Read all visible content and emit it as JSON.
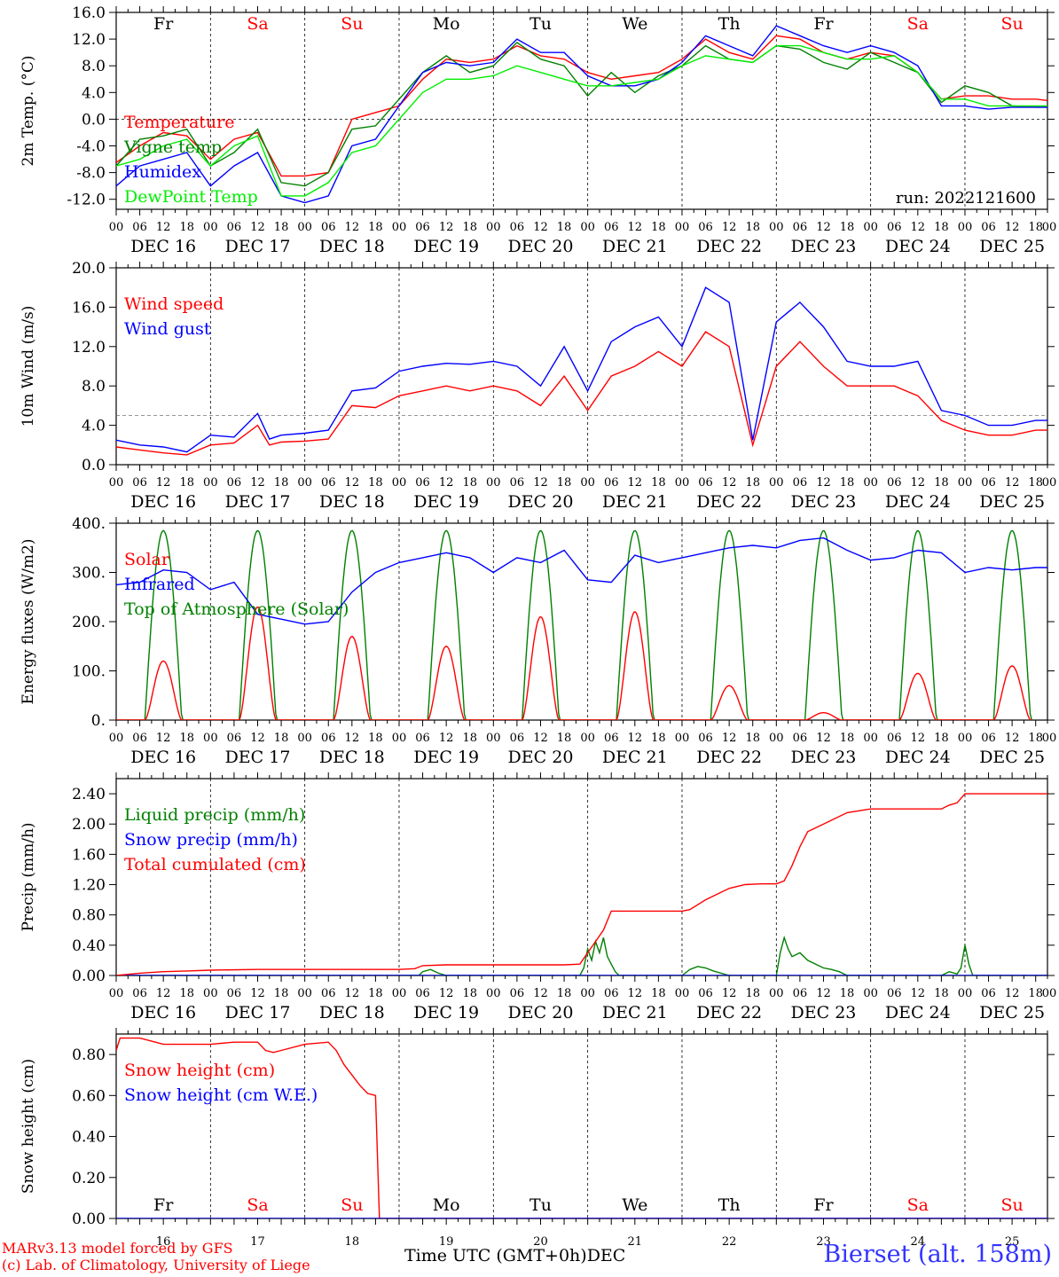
{
  "chart_data": [
    {
      "type": "line",
      "ylabel": "2m Temp. (°C)",
      "ylim": [
        -13.5,
        16.0
      ],
      "yticks": [
        "16.0",
        "12.0",
        "8.0",
        "4.0",
        "0.0",
        "-4.0",
        "-8.0",
        "-12.0"
      ],
      "yticks_values": [
        16,
        12,
        8,
        4,
        0,
        -4,
        -8,
        -12
      ],
      "zero_line": true,
      "annotation": "run: 2022121600",
      "legend_position": "bottom-left",
      "day_names_top": true,
      "series": [
        {
          "name": "Temperature",
          "color": "#ff0000",
          "x": [
            0,
            6,
            12,
            18,
            24,
            30,
            36,
            42,
            48,
            54,
            60,
            66,
            72,
            78,
            84,
            90,
            96,
            102,
            108,
            114,
            120,
            126,
            132,
            138,
            144,
            150,
            156,
            162,
            168,
            174,
            180,
            186,
            192,
            198,
            204,
            210,
            216,
            222,
            228,
            234,
            237
          ],
          "values": [
            -6.5,
            -4,
            -2,
            -2.5,
            -6,
            -3,
            -2,
            -8.5,
            -8.5,
            -8,
            0,
            1,
            2,
            6,
            9,
            8.5,
            9,
            11,
            9.5,
            9,
            7,
            6,
            6.5,
            7,
            9,
            12,
            10,
            9,
            12.5,
            12,
            10,
            9,
            10,
            9.5,
            7,
            3,
            3.5,
            3.5,
            3,
            3,
            2.8
          ]
        },
        {
          "name": "Vigne temp",
          "color": "#008000",
          "x": [
            0,
            6,
            12,
            18,
            24,
            30,
            36,
            42,
            48,
            54,
            60,
            66,
            72,
            78,
            84,
            90,
            96,
            102,
            108,
            114,
            120,
            126,
            132,
            138,
            144,
            150,
            156,
            162,
            168,
            174,
            180,
            186,
            192,
            198,
            204,
            210,
            216,
            222,
            228,
            234,
            237
          ],
          "values": [
            -7,
            -3,
            -2.5,
            -1.5,
            -7,
            -5,
            -1.5,
            -9.5,
            -10,
            -8,
            -1.5,
            -1,
            3,
            7,
            9.5,
            7,
            8,
            11.5,
            9,
            8,
            3.5,
            7,
            4,
            6.5,
            8,
            11,
            9,
            8.5,
            11,
            10.5,
            8.5,
            7.5,
            10,
            8.5,
            7,
            2.5,
            5,
            4,
            2,
            1.8,
            1.8
          ]
        },
        {
          "name": "Humidex",
          "color": "#0000ff",
          "x": [
            0,
            6,
            12,
            18,
            24,
            30,
            36,
            42,
            48,
            54,
            60,
            66,
            72,
            78,
            84,
            90,
            96,
            102,
            108,
            114,
            120,
            126,
            132,
            138,
            144,
            150,
            156,
            162,
            168,
            174,
            180,
            186,
            192,
            198,
            204,
            210,
            216,
            222,
            228,
            234,
            237
          ],
          "values": [
            -10,
            -7,
            -6,
            -5,
            -10,
            -7,
            -5,
            -11.5,
            -12.5,
            -11.5,
            -4,
            -3,
            2,
            7,
            8.5,
            8,
            8.5,
            12,
            10,
            10,
            6.5,
            5,
            5,
            6,
            8.5,
            12.5,
            11,
            9.5,
            14,
            12.5,
            11,
            10,
            11,
            10,
            8,
            2,
            2,
            1.5,
            1.8,
            1.8,
            1.8
          ]
        },
        {
          "name": "DewPoint Temp",
          "color": "#00ee00",
          "x": [
            0,
            6,
            12,
            18,
            24,
            30,
            36,
            42,
            48,
            54,
            60,
            66,
            72,
            78,
            84,
            90,
            96,
            102,
            108,
            114,
            120,
            126,
            132,
            138,
            144,
            150,
            156,
            162,
            168,
            174,
            180,
            186,
            192,
            198,
            204,
            210,
            216,
            222,
            228,
            234,
            237
          ],
          "values": [
            -7,
            -6,
            -4,
            -3,
            -7,
            -4,
            -2.5,
            -11.5,
            -11.5,
            -9.5,
            -5,
            -4,
            0,
            4,
            6,
            6,
            6.5,
            8,
            7,
            6,
            5,
            5,
            5.5,
            6,
            8,
            9.5,
            9,
            8.5,
            11,
            11,
            10,
            9,
            9,
            9.5,
            7,
            3,
            3,
            2,
            2,
            2,
            2
          ]
        }
      ]
    },
    {
      "type": "line",
      "ylabel": "10m Wind (m/s)",
      "ylim": [
        0,
        20
      ],
      "yticks": [
        "20.0",
        "16.0",
        "12.0",
        "8.0",
        "4.0",
        "0.0"
      ],
      "yticks_values": [
        20,
        16,
        12,
        8,
        4,
        0
      ],
      "reference_line": 5,
      "legend_position": "top-left",
      "series": [
        {
          "name": "Wind speed",
          "color": "#ff0000",
          "x": [
            0,
            6,
            12,
            18,
            24,
            30,
            36,
            39,
            42,
            48,
            54,
            60,
            66,
            72,
            78,
            84,
            90,
            96,
            102,
            108,
            114,
            120,
            126,
            132,
            138,
            144,
            150,
            156,
            162,
            168,
            174,
            180,
            186,
            192,
            198,
            204,
            210,
            216,
            222,
            228,
            234,
            237
          ],
          "values": [
            1.8,
            1.5,
            1.2,
            1.0,
            2.0,
            2.2,
            4.0,
            2.0,
            2.3,
            2.4,
            2.6,
            6.0,
            5.8,
            7.0,
            7.5,
            8.0,
            7.5,
            8.0,
            7.5,
            6.0,
            9.0,
            5.5,
            9.0,
            10.0,
            11.5,
            10.0,
            13.5,
            12.0,
            2.0,
            10.0,
            12.5,
            10.0,
            8.0,
            8.0,
            8.0,
            7.0,
            4.5,
            3.5,
            3.0,
            3.0,
            3.5,
            3.5
          ]
        },
        {
          "name": "Wind gust",
          "color": "#0000ff",
          "x": [
            0,
            6,
            12,
            18,
            24,
            30,
            36,
            39,
            42,
            48,
            54,
            60,
            66,
            72,
            78,
            84,
            90,
            96,
            102,
            108,
            114,
            120,
            126,
            132,
            138,
            144,
            150,
            156,
            162,
            168,
            174,
            180,
            186,
            192,
            198,
            204,
            210,
            216,
            222,
            228,
            234,
            237
          ],
          "values": [
            2.5,
            2.0,
            1.8,
            1.3,
            3.0,
            2.8,
            5.2,
            2.6,
            3.0,
            3.2,
            3.5,
            7.5,
            7.8,
            9.5,
            10.0,
            10.3,
            10.2,
            10.5,
            10.0,
            8.0,
            12.0,
            7.5,
            12.5,
            14.0,
            15.0,
            12.0,
            18.0,
            16.5,
            2.5,
            14.5,
            16.5,
            14.0,
            10.5,
            10.0,
            10.0,
            10.5,
            5.5,
            5.0,
            4.0,
            4.0,
            4.5,
            4.5
          ]
        }
      ]
    },
    {
      "type": "line",
      "ylabel": "Energy fluxes (W/m2)",
      "ylim": [
        0,
        400
      ],
      "yticks": [
        "400.",
        "300.",
        "200.",
        "100.",
        "0."
      ],
      "yticks_values": [
        400,
        300,
        200,
        100,
        0
      ],
      "legend_position": "top-left",
      "series": [
        {
          "name": "Solar",
          "color": "#ff0000",
          "peaks": [
            120,
            230,
            170,
            150,
            210,
            220,
            70,
            15,
            95,
            110
          ]
        },
        {
          "name": "Infrared",
          "color": "#0000ff",
          "x": [
            0,
            6,
            12,
            18,
            24,
            30,
            36,
            42,
            48,
            54,
            60,
            66,
            72,
            78,
            84,
            90,
            96,
            102,
            108,
            114,
            120,
            126,
            132,
            138,
            144,
            150,
            156,
            162,
            168,
            174,
            180,
            186,
            192,
            198,
            204,
            210,
            216,
            222,
            228,
            234,
            237
          ],
          "values": [
            275,
            280,
            305,
            300,
            265,
            280,
            215,
            205,
            195,
            200,
            260,
            300,
            320,
            330,
            340,
            330,
            300,
            330,
            320,
            345,
            285,
            280,
            335,
            320,
            330,
            340,
            350,
            355,
            350,
            365,
            370,
            345,
            325,
            330,
            345,
            340,
            300,
            310,
            305,
            310,
            310
          ]
        },
        {
          "name": "Top of Atmosphere (Solar)",
          "color": "#008000",
          "peak": 385
        }
      ]
    },
    {
      "type": "line",
      "ylabel": "Precip (mm/h)",
      "ylim": [
        0,
        2.6
      ],
      "yticks": [
        "2.40",
        "2.00",
        "1.60",
        "1.20",
        "0.80",
        "0.40",
        "0.00"
      ],
      "yticks_values": [
        2.4,
        2.0,
        1.6,
        1.2,
        0.8,
        0.4,
        0.0
      ],
      "legend_position": "top-left",
      "series": [
        {
          "name": "Liquid precip (mm/h)",
          "color": "#008000",
          "x": [
            0,
            77,
            78,
            80,
            82,
            84,
            118,
            119,
            120,
            121,
            122,
            123,
            124,
            125,
            126,
            127,
            128,
            144,
            146,
            148,
            150,
            152,
            156,
            168,
            169,
            170,
            171,
            172,
            174,
            176,
            178,
            180,
            182,
            184,
            186,
            210,
            212,
            214,
            215,
            216,
            217,
            218,
            237
          ],
          "values": [
            0,
            0,
            0.05,
            0.08,
            0.03,
            0,
            0,
            0.1,
            0.35,
            0.2,
            0.45,
            0.3,
            0.5,
            0.25,
            0.15,
            0.05,
            0,
            0,
            0.08,
            0.12,
            0.1,
            0.06,
            0,
            0,
            0.3,
            0.5,
            0.35,
            0.25,
            0.3,
            0.2,
            0.15,
            0.1,
            0.08,
            0.05,
            0,
            0,
            0.05,
            0.02,
            0.1,
            0.4,
            0.15,
            0,
            0
          ]
        },
        {
          "name": "Snow precip (mm/h)",
          "color": "#0000ff",
          "x": [
            0,
            237
          ],
          "values": [
            0,
            0
          ]
        },
        {
          "name": "Total cumulated (cm)",
          "color": "#ff0000",
          "x": [
            0,
            6,
            12,
            18,
            24,
            36,
            48,
            60,
            72,
            76,
            78,
            84,
            96,
            108,
            114,
            118,
            120,
            122,
            124,
            126,
            132,
            140,
            144,
            146,
            150,
            156,
            160,
            164,
            168,
            170,
            172,
            174,
            176,
            180,
            186,
            192,
            204,
            210,
            212,
            214,
            216,
            237
          ],
          "values": [
            0,
            0.03,
            0.05,
            0.06,
            0.07,
            0.08,
            0.08,
            0.08,
            0.08,
            0.09,
            0.13,
            0.14,
            0.14,
            0.14,
            0.14,
            0.15,
            0.3,
            0.45,
            0.6,
            0.85,
            0.85,
            0.85,
            0.85,
            0.87,
            1.0,
            1.15,
            1.2,
            1.21,
            1.21,
            1.25,
            1.45,
            1.7,
            1.9,
            2.0,
            2.15,
            2.2,
            2.2,
            2.2,
            2.25,
            2.28,
            2.4,
            2.4
          ]
        }
      ]
    },
    {
      "type": "line",
      "ylabel": "Snow height (cm)",
      "ylim": [
        0,
        0.9
      ],
      "yticks": [
        "0.80",
        "0.60",
        "0.40",
        "0.20",
        "0.00"
      ],
      "yticks_values": [
        0.8,
        0.6,
        0.4,
        0.2,
        0.0
      ],
      "legend_position": "top-left",
      "day_names_bottom": true,
      "series": [
        {
          "name": "Snow height (cm)",
          "color": "#ff0000",
          "x": [
            0,
            1,
            2,
            6,
            10,
            12,
            16,
            24,
            30,
            36,
            38,
            40,
            42,
            48,
            54,
            56,
            58,
            62,
            64,
            66,
            67,
            68,
            237
          ],
          "values": [
            0.82,
            0.88,
            0.88,
            0.88,
            0.86,
            0.85,
            0.85,
            0.85,
            0.86,
            0.86,
            0.82,
            0.81,
            0.82,
            0.85,
            0.86,
            0.82,
            0.75,
            0.65,
            0.61,
            0.6,
            0.0,
            0.0,
            0.0
          ]
        },
        {
          "name": "Snow height (cm W.E.)",
          "color": "#0000ff",
          "x": [
            0,
            237
          ],
          "values": [
            0,
            0
          ]
        }
      ]
    }
  ],
  "x_axis": {
    "hour_ticks": [
      "00",
      "06",
      "12",
      "18"
    ],
    "last_hour_tick": "00",
    "day_labels": [
      "DEC 16",
      "DEC 17",
      "DEC 18",
      "DEC 19",
      "DEC 20",
      "DEC 21",
      "DEC 22",
      "DEC 23",
      "DEC 24",
      "DEC 25"
    ],
    "day_numbers": [
      "16",
      "17",
      "18",
      "19",
      "20",
      "21",
      "22",
      "23",
      "24",
      "25"
    ],
    "day_names": [
      "Fr",
      "Sa",
      "Su",
      "Mo",
      "Tu",
      "We",
      "Th",
      "Fr",
      "Sa",
      "Su"
    ],
    "weekend_flags": [
      false,
      true,
      true,
      false,
      false,
      false,
      false,
      false,
      true,
      true
    ]
  },
  "footer": {
    "model": "MARv3.13 model forced by GFS",
    "credit": "(c) Lab. of Climatology, University of Liege",
    "xlabel": "Time UTC (GMT+0h)",
    "month": "DEC",
    "station": "Bierset (alt. 158m)"
  },
  "colors": {
    "red": "#ff0000",
    "green": "#008000",
    "blue": "#0000ff",
    "light_green": "#00ee00",
    "weekend": "#ff0000",
    "weekday": "#000000",
    "station": "#3333ff"
  }
}
